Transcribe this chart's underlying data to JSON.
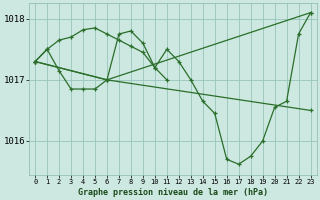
{
  "background_color": "#cce8e0",
  "grid_color": "#a8ccC4",
  "line_color": "#2a6e2a",
  "title": "Graphe pression niveau de la mer (hPa)",
  "xlim": [
    -0.5,
    23.5
  ],
  "ylim": [
    1015.45,
    1018.25
  ],
  "yticks": [
    1016,
    1017,
    1018
  ],
  "xticks": [
    0,
    1,
    2,
    3,
    4,
    5,
    6,
    7,
    8,
    9,
    10,
    11,
    12,
    13,
    14,
    15,
    16,
    17,
    18,
    19,
    20,
    21,
    22,
    23
  ],
  "line1_x": [
    0,
    1,
    2,
    3,
    4,
    5,
    6,
    7,
    8,
    9,
    10,
    11,
    12,
    13,
    14,
    15,
    16,
    17,
    18,
    19,
    20,
    21,
    22,
    23
  ],
  "line1_y": [
    1017.3,
    1017.5,
    1017.15,
    1016.85,
    1016.85,
    1016.85,
    1017.0,
    1017.75,
    1017.8,
    1017.6,
    1017.2,
    1017.5,
    1017.3,
    1017.0,
    1016.65,
    1016.45,
    1015.7,
    1015.62,
    1015.75,
    1016.0,
    1016.55,
    1016.65,
    1017.75,
    1018.1
  ],
  "line2_x": [
    0,
    1,
    2,
    3,
    4,
    5,
    6,
    7,
    8,
    9,
    10,
    11
  ],
  "line2_y": [
    1017.3,
    1017.5,
    1017.65,
    1017.7,
    1017.82,
    1017.85,
    1017.75,
    1017.65,
    1017.55,
    1017.45,
    1017.2,
    1017.0
  ],
  "line3_x": [
    0,
    6,
    23
  ],
  "line3_y": [
    1017.3,
    1017.0,
    1018.1
  ],
  "line4_x": [
    0,
    6,
    23
  ],
  "line4_y": [
    1017.3,
    1017.0,
    1016.5
  ]
}
